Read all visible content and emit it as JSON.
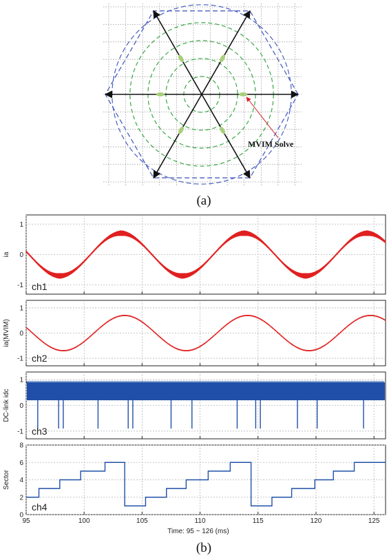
{
  "chart_data": [
    {
      "type": "diagram",
      "caption": "(a)",
      "annotation": "MVIM Solve",
      "vectors_deg": [
        0,
        60,
        120,
        180,
        240,
        300
      ],
      "solution_points": [
        {
          "angle_deg": 0
        },
        {
          "angle_deg": 60
        },
        {
          "angle_deg": 120
        },
        {
          "angle_deg": 180
        },
        {
          "angle_deg": 240
        },
        {
          "angle_deg": 300
        }
      ],
      "circle_radii_fraction": [
        0.2,
        0.4,
        0.6,
        0.8
      ],
      "colors": {
        "vectors": "#111111",
        "hexagon": "#4a5fbf",
        "circles": "#3aa845",
        "points": "#a8cf7a",
        "pointer": "#d0262a"
      }
    },
    {
      "type": "line",
      "caption": "(b)",
      "xlabel": "Time: 95 ~ 126 (ms)",
      "xlim": [
        95,
        126
      ],
      "xticks": [
        95,
        100,
        105,
        110,
        115,
        120,
        125
      ],
      "panels": [
        {
          "channel": "ch1",
          "ylabel": "ia",
          "ylim": [
            -1.3,
            1.3
          ],
          "yticks": [
            1,
            0,
            -1
          ],
          "yticklabels": [
            "1",
            "0",
            "-1"
          ],
          "color": "#e02020",
          "series": {
            "kind": "sine",
            "amplitude": 0.7,
            "period_ms": 10.6,
            "peak_at_ms": 103.2,
            "ripple": "high"
          }
        },
        {
          "channel": "ch2",
          "ylabel": "ia(MVIM)",
          "ylim": [
            -1.3,
            1.3
          ],
          "yticks": [
            1,
            0,
            -1
          ],
          "yticklabels": [
            "1",
            "0",
            "-1"
          ],
          "color": "#e02020",
          "series": {
            "kind": "sine",
            "amplitude": 0.7,
            "period_ms": 10.6,
            "peak_at_ms": 103.5,
            "ripple": "low"
          }
        },
        {
          "channel": "ch3",
          "ylabel": "DC-link idc",
          "ylim": [
            -1.3,
            1.3
          ],
          "yticks": [
            1,
            0,
            -1
          ],
          "yticklabels": [
            "1",
            "0",
            "-1"
          ],
          "color": "#1f4fa8",
          "series": {
            "kind": "pulses",
            "band": [
              0.2,
              0.9
            ]
          },
          "dips_ms": [
            96,
            97.8,
            98.2,
            101.2,
            103.8,
            104.2,
            107.5,
            109.3,
            113.2,
            114.8,
            115.2,
            118.4,
            120.1,
            124.1
          ]
        },
        {
          "channel": "ch4",
          "ylabel": "Sector",
          "ylim": [
            0,
            8
          ],
          "yticks": [
            8,
            6,
            4,
            2,
            0
          ],
          "yticklabels": [
            "8",
            "6",
            "4",
            "2",
            "0"
          ],
          "color": "#1f4fa8",
          "series": {
            "kind": "step",
            "x": [
              95,
              96.1,
              97.9,
              99.7,
              101.8,
              103.5,
              105.3,
              107.1,
              108.8,
              110.7,
              112.6,
              114.4,
              116.2,
              117.9,
              119.9,
              121.5,
              123.3,
              124.7,
              126
            ],
            "y": [
              2,
              3,
              4,
              5,
              6,
              1,
              2,
              3,
              4,
              5,
              6,
              1,
              2,
              3,
              4,
              5,
              6,
              6,
              6
            ]
          }
        }
      ]
    }
  ]
}
